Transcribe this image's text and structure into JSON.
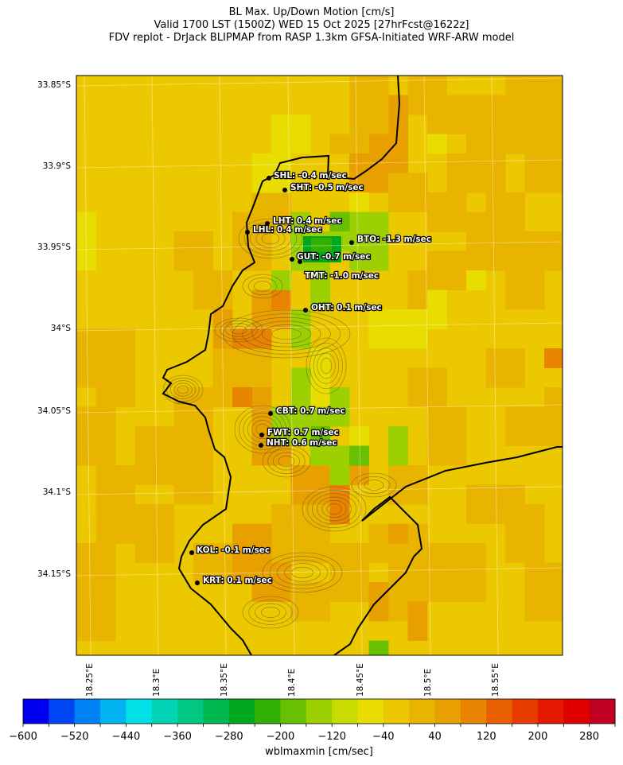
{
  "title": {
    "line1": "BL Max. Up/Down Motion [cm/s]",
    "line2": "Valid 1700 LST (1500Z) WED 15 Oct 2025 [27hrFcst@1622z]",
    "line3": "FDV replot - DrJack BLIPMAP from RASP 1.3km GFSA-Initiated WRF-ARW model"
  },
  "lat_labels": [
    "33.85°S",
    "33.9°S",
    "33.95°S",
    "34°S",
    "34.05°S",
    "34.1°S",
    "34.15°S"
  ],
  "lon_labels": [
    "18.25°E",
    "18.3°E",
    "18.35°E",
    "18.4°E",
    "18.45°E",
    "18.5°E",
    "18.55°E"
  ],
  "stations": [
    {
      "code": "SHL",
      "label": "SHL: -0.4 m/sec",
      "value": -0.4
    },
    {
      "code": "SHT",
      "label": "SHT: -0.5 m/sec",
      "value": -0.5
    },
    {
      "code": "LHT",
      "label": "LHT: 0.4 m/sec",
      "value": 0.4
    },
    {
      "code": "LHL",
      "label": "LHL: 0.4 m/sec",
      "value": 0.4
    },
    {
      "code": "BTO",
      "label": "BTO: -1.3 m/sec",
      "value": -1.3
    },
    {
      "code": "GUT",
      "label": "GUT: -0.7 m/sec",
      "value": -0.7
    },
    {
      "code": "TMT",
      "label": "TMT: -1.0 m/sec",
      "value": -1.0
    },
    {
      "code": "OHT",
      "label": "OHT: 0.1 m/sec",
      "value": 0.1
    },
    {
      "code": "CBT",
      "label": "CBT: 0.7 m/sec",
      "value": 0.7
    },
    {
      "code": "FWT",
      "label": "FWT: 0.7 m/sec",
      "value": 0.7
    },
    {
      "code": "NHT",
      "label": "NHT: 0.6 m/sec",
      "value": 0.6
    },
    {
      "code": "KOL",
      "label": "KOL: -0.1 m/sec",
      "value": -0.1
    },
    {
      "code": "KRT",
      "label": "KRT: 0.1 m/sec",
      "value": 0.1
    }
  ],
  "colorbar": {
    "label": "wblmaxmin [cm/sec]",
    "min": -600,
    "max": 320,
    "step": 40,
    "tick_labels": [
      "−600",
      "−520",
      "−440",
      "−360",
      "−280",
      "−200",
      "−120",
      "−40",
      "40",
      "120",
      "200",
      "280"
    ],
    "colors": [
      "#0000f0",
      "#0046f5",
      "#0082f5",
      "#00b3f0",
      "#00e0e6",
      "#00d4b4",
      "#00c882",
      "#00b850",
      "#00a820",
      "#30b000",
      "#68c000",
      "#9cd000",
      "#c8dc00",
      "#e8dc00",
      "#ecc800",
      "#e8b400",
      "#e8a000",
      "#e88400",
      "#e86000",
      "#e83c00",
      "#e41800",
      "#e00000",
      "#c00020"
    ]
  },
  "field_colors": {
    "base": "#ecc800",
    "light": "#e8dc00",
    "mid": "#e8b400",
    "orange": "#e8a000",
    "dark_orange": "#e88400",
    "green_light": "#9cd000",
    "green": "#68c000",
    "green_dark": "#30b000",
    "deep_green": "#00a820"
  }
}
